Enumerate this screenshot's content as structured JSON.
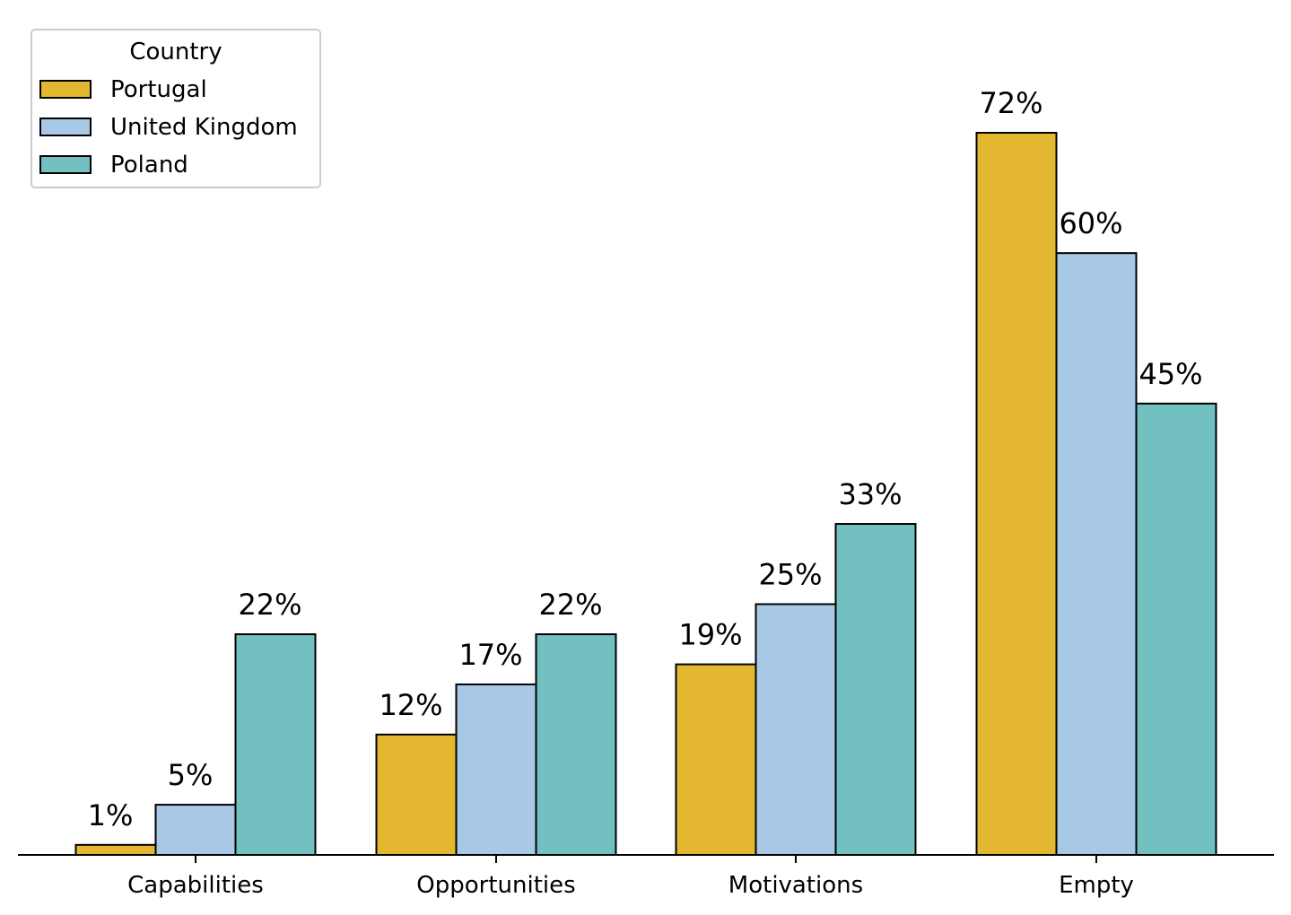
{
  "chart_data": {
    "type": "bar",
    "title": "",
    "xlabel": "",
    "ylabel": "",
    "categories": [
      "Capabilities",
      "Opportunities",
      "Motivations",
      "Empty"
    ],
    "series": [
      {
        "name": "Portugal",
        "values": [
          1,
          12,
          19,
          72
        ],
        "labels": [
          "1%",
          "12%",
          "19%",
          "72%"
        ],
        "color": "#E3B72F"
      },
      {
        "name": "United Kingdom",
        "values": [
          5,
          17,
          25,
          60
        ],
        "labels": [
          "5%",
          "17%",
          "25%",
          "60%"
        ],
        "color": "#A8C9E5"
      },
      {
        "name": "Poland",
        "values": [
          22,
          22,
          33,
          45
        ],
        "labels": [
          "22%",
          "22%",
          "33%",
          "45%"
        ],
        "color": "#72C0C0"
      }
    ],
    "legend": {
      "title": "Country",
      "placement": "top-left"
    },
    "ylim": [
      0,
      80
    ],
    "grid": false,
    "y_axis_visible": false,
    "edge_color": "#000000"
  }
}
